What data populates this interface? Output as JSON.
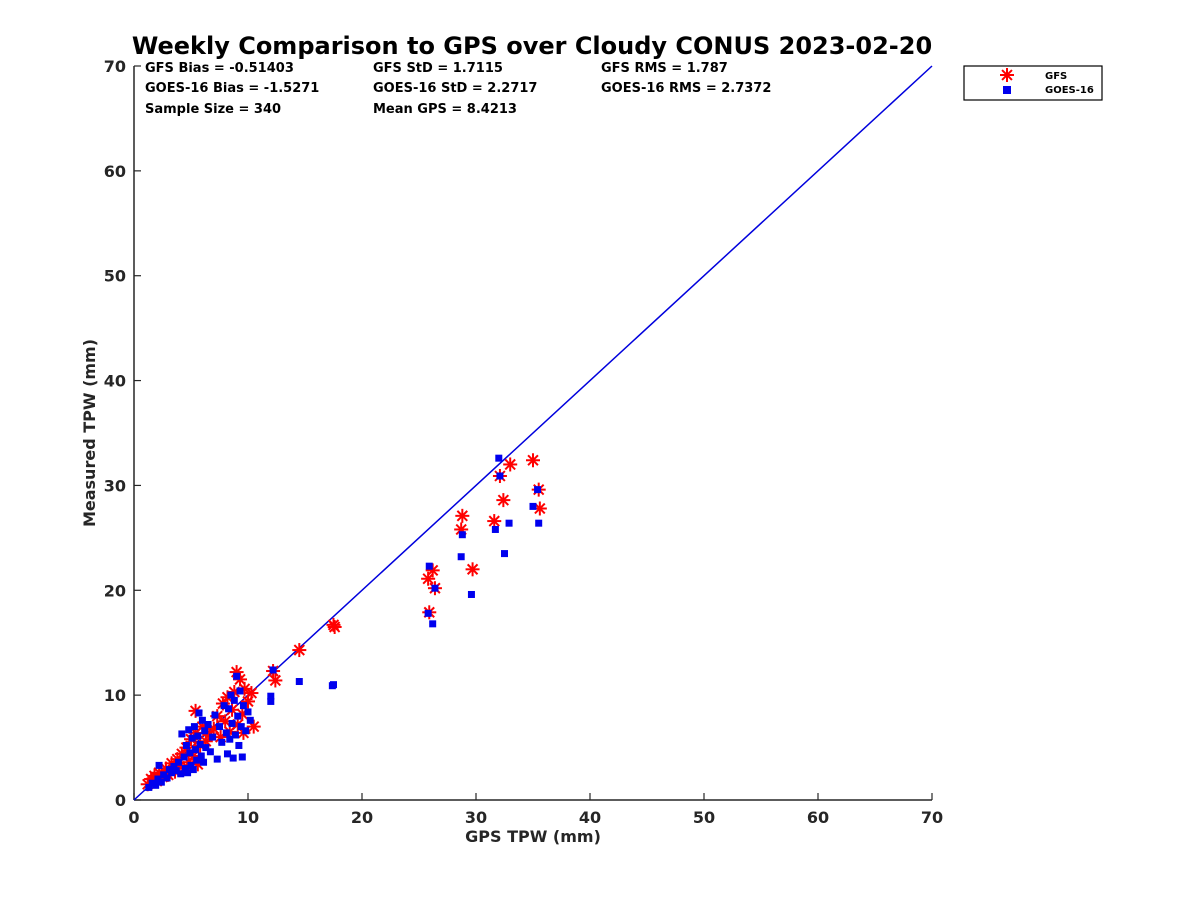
{
  "chart_data": {
    "type": "scatter",
    "title": "Weekly Comparison to GPS over Cloudy CONUS 2023-02-20",
    "xlabel": "GPS TPW (mm)",
    "ylabel": "Measured TPW (mm)",
    "xlim": [
      0,
      70
    ],
    "ylim": [
      0,
      70
    ],
    "xticks": [
      "0",
      "10",
      "20",
      "30",
      "40",
      "50",
      "60",
      "70"
    ],
    "yticks": [
      "0",
      "10",
      "20",
      "30",
      "40",
      "50",
      "60",
      "70"
    ],
    "grid": false,
    "legend_position": "outside-top-right",
    "stats": [
      [
        "GFS Bias = -0.51403",
        "GFS StD = 1.7115",
        "GFS RMS = 1.787"
      ],
      [
        "GOES-16 Bias = -1.5271",
        "GOES-16 StD = 2.2717",
        "GOES-16 RMS = 2.7372"
      ],
      [
        "Sample Size = 340",
        "Mean GPS = 8.4213",
        ""
      ]
    ],
    "reference_line": {
      "x": [
        0,
        70
      ],
      "y": [
        0,
        70
      ],
      "color": "#0000dd"
    },
    "series": [
      {
        "name": "GFS",
        "marker": "asterisk",
        "color": "#ff0000",
        "points": [
          [
            1.2,
            1.5
          ],
          [
            1.5,
            2.0
          ],
          [
            1.8,
            2.3
          ],
          [
            2.0,
            1.8
          ],
          [
            2.2,
            2.6
          ],
          [
            2.5,
            2.2
          ],
          [
            2.8,
            3.0
          ],
          [
            3.0,
            2.4
          ],
          [
            3.3,
            3.5
          ],
          [
            3.6,
            2.7
          ],
          [
            3.8,
            3.9
          ],
          [
            4.0,
            3.2
          ],
          [
            4.2,
            4.4
          ],
          [
            4.4,
            3.0
          ],
          [
            4.6,
            5.0
          ],
          [
            4.8,
            3.6
          ],
          [
            5.0,
            5.8
          ],
          [
            5.2,
            4.2
          ],
          [
            5.4,
            6.4
          ],
          [
            5.6,
            3.4
          ],
          [
            5.8,
            5.2
          ],
          [
            5.4,
            8.5
          ],
          [
            6.0,
            7.0
          ],
          [
            6.3,
            5.6
          ],
          [
            6.6,
            6.2
          ],
          [
            7.0,
            6.8
          ],
          [
            7.3,
            8.0
          ],
          [
            7.6,
            6.0
          ],
          [
            7.8,
            9.2
          ],
          [
            8.0,
            7.5
          ],
          [
            8.2,
            9.8
          ],
          [
            8.4,
            6.5
          ],
          [
            8.6,
            8.6
          ],
          [
            8.8,
            10.3
          ],
          [
            9.0,
            12.2
          ],
          [
            9.1,
            7.2
          ],
          [
            9.3,
            11.5
          ],
          [
            9.5,
            8.2
          ],
          [
            9.7,
            10.6
          ],
          [
            10.0,
            9.4
          ],
          [
            10.3,
            10.2
          ],
          [
            10.5,
            7.0
          ],
          [
            9.6,
            6.4
          ],
          [
            12.2,
            12.3
          ],
          [
            12.4,
            11.4
          ],
          [
            14.5,
            14.3
          ],
          [
            17.5,
            16.7
          ],
          [
            17.6,
            16.5
          ],
          [
            25.8,
            21.1
          ],
          [
            26.2,
            21.9
          ],
          [
            25.9,
            17.9
          ],
          [
            26.4,
            20.2
          ],
          [
            28.8,
            27.1
          ],
          [
            28.7,
            25.8
          ],
          [
            29.7,
            22.0
          ],
          [
            31.6,
            26.6
          ],
          [
            32.1,
            30.9
          ],
          [
            32.4,
            28.6
          ],
          [
            33.0,
            32.0
          ],
          [
            35.0,
            32.4
          ],
          [
            35.5,
            29.6
          ],
          [
            35.6,
            27.8
          ]
        ]
      },
      {
        "name": "GOES-16",
        "marker": "square",
        "color": "#0000ee",
        "points": [
          [
            1.3,
            1.2
          ],
          [
            1.6,
            1.6
          ],
          [
            1.9,
            1.4
          ],
          [
            2.1,
            2.0
          ],
          [
            2.2,
            3.3
          ],
          [
            2.4,
            1.7
          ],
          [
            2.6,
            2.4
          ],
          [
            2.9,
            2.1
          ],
          [
            3.1,
            2.9
          ],
          [
            3.3,
            2.6
          ],
          [
            3.5,
            3.2
          ],
          [
            3.7,
            2.8
          ],
          [
            3.9,
            3.6
          ],
          [
            4.1,
            2.5
          ],
          [
            4.2,
            6.3
          ],
          [
            4.4,
            4.1
          ],
          [
            4.5,
            3.0
          ],
          [
            4.6,
            5.2
          ],
          [
            4.7,
            2.6
          ],
          [
            4.8,
            6.7
          ],
          [
            4.9,
            4.5
          ],
          [
            5.0,
            3.3
          ],
          [
            5.1,
            5.9
          ],
          [
            5.2,
            2.9
          ],
          [
            5.3,
            7.0
          ],
          [
            5.4,
            4.8
          ],
          [
            5.5,
            3.8
          ],
          [
            5.6,
            6.1
          ],
          [
            5.7,
            8.3
          ],
          [
            5.8,
            5.3
          ],
          [
            5.9,
            4.2
          ],
          [
            6.0,
            7.6
          ],
          [
            6.1,
            3.6
          ],
          [
            6.2,
            6.6
          ],
          [
            6.3,
            5.0
          ],
          [
            6.5,
            7.2
          ],
          [
            6.7,
            4.6
          ],
          [
            6.9,
            6.0
          ],
          [
            7.1,
            8.1
          ],
          [
            7.3,
            3.9
          ],
          [
            7.5,
            7.0
          ],
          [
            7.7,
            5.5
          ],
          [
            7.9,
            9.0
          ],
          [
            8.1,
            6.4
          ],
          [
            8.2,
            4.4
          ],
          [
            8.3,
            8.7
          ],
          [
            8.4,
            5.8
          ],
          [
            8.5,
            10.0
          ],
          [
            8.6,
            7.3
          ],
          [
            8.7,
            4.0
          ],
          [
            8.8,
            9.5
          ],
          [
            8.9,
            6.2
          ],
          [
            9.0,
            11.8
          ],
          [
            9.1,
            8.0
          ],
          [
            9.2,
            5.2
          ],
          [
            9.3,
            10.4
          ],
          [
            9.4,
            7.0
          ],
          [
            9.5,
            4.1
          ],
          [
            9.6,
            9.0
          ],
          [
            9.8,
            6.6
          ],
          [
            10.0,
            8.4
          ],
          [
            10.2,
            7.6
          ],
          [
            12.0,
            9.4
          ],
          [
            12.0,
            9.9
          ],
          [
            12.2,
            12.4
          ],
          [
            14.5,
            11.3
          ],
          [
            17.5,
            11.0
          ],
          [
            17.4,
            10.9
          ],
          [
            25.9,
            22.3
          ],
          [
            25.8,
            17.8
          ],
          [
            26.2,
            16.8
          ],
          [
            26.4,
            20.2
          ],
          [
            28.8,
            25.3
          ],
          [
            28.7,
            23.2
          ],
          [
            29.6,
            19.6
          ],
          [
            31.7,
            25.8
          ],
          [
            32.0,
            32.6
          ],
          [
            32.1,
            30.9
          ],
          [
            32.5,
            23.5
          ],
          [
            32.9,
            26.4
          ],
          [
            35.0,
            28.0
          ],
          [
            35.4,
            29.6
          ],
          [
            35.5,
            26.4
          ]
        ]
      }
    ]
  }
}
